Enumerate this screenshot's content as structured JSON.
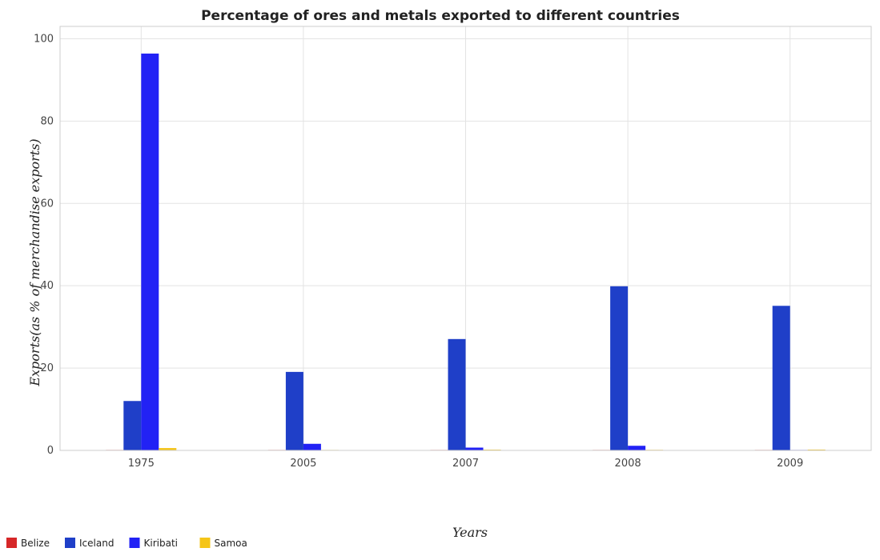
{
  "chart_data": {
    "type": "bar",
    "title": "Percentage of ores and metals exported to different countries",
    "xlabel": "Years",
    "ylabel": "Exports(as % of merchandise exports)",
    "categories": [
      "1975",
      "2005",
      "2007",
      "2008",
      "2009"
    ],
    "ylim": [
      0,
      103
    ],
    "yticks": [
      0,
      20,
      40,
      60,
      80,
      100
    ],
    "grid": true,
    "legend_position": "bottom-left",
    "series": [
      {
        "name": "Belize",
        "color": "#d62728",
        "values": [
          0.02,
          0.01,
          0.01,
          0.01,
          0.01
        ]
      },
      {
        "name": "Iceland",
        "color": "#1f3fc8",
        "values": [
          12.0,
          19.07,
          27.05,
          39.87,
          35.12
        ]
      },
      {
        "name": "Kiribati",
        "color": "#2222f5",
        "values": [
          96.4,
          1.6,
          0.68,
          1.12,
          0.02
        ]
      },
      {
        "name": "Samoa",
        "color": "#f5c518",
        "values": [
          0.57,
          0.05,
          0.18,
          0.14,
          0.2
        ]
      }
    ]
  }
}
